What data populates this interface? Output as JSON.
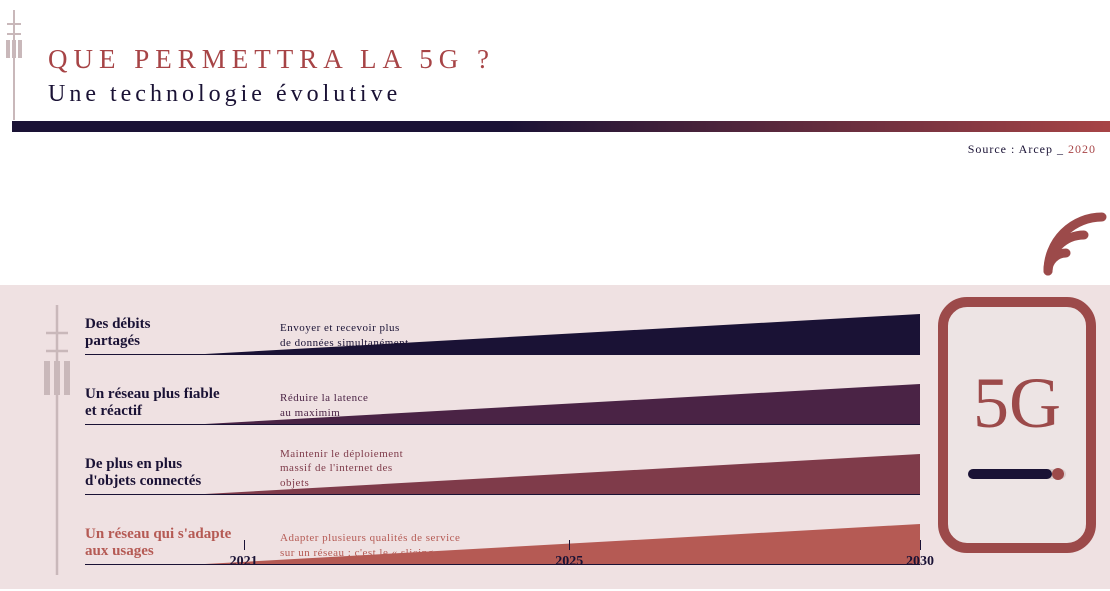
{
  "header": {
    "title": "QUE PERMETTRA LA 5G ?",
    "subtitle": "Une technologie évolutive",
    "title_color": "#a74446",
    "subtitle_color": "#1a1235",
    "gradient_start": "#1a1235",
    "gradient_end": "#a74446"
  },
  "source": {
    "prefix": "Source : Arcep _ ",
    "year": "2020"
  },
  "panel": {
    "background": "#efe1e2"
  },
  "phone": {
    "label": "5G",
    "stroke": "#9c4a4a",
    "label_color": "#9c4a4a",
    "screen_fill": "#ede4e4"
  },
  "rows": [
    {
      "label": "Des débits\npartagés",
      "desc": "Envoyer et recevoir plus\nde données simultanément",
      "wedge_color": "#1a1235",
      "label_color": "#1a1235",
      "desc_color": "#1a1235"
    },
    {
      "label": "Un réseau plus fiable\net réactif",
      "desc": "Réduire la latence\nau maximim",
      "wedge_color": "#4a2345",
      "label_color": "#1a1235",
      "desc_color": "#4a2345"
    },
    {
      "label": "De plus en plus\nd'objets connectés",
      "desc": "Maintenir le déploiement\nmassif de l'internet des\nobjets",
      "wedge_color": "#7f3b4a",
      "label_color": "#1a1235",
      "desc_color": "#7f3b4a"
    },
    {
      "label": "Un réseau qui s'adapte\naux usages",
      "desc": "Adapter plusieurs qualités de service\nsur un réseau : c'est le « slicing »",
      "wedge_color": "#b55a54",
      "label_color": "#b55a54",
      "desc_color": "#b55a54"
    }
  ],
  "timeline": {
    "ticks": [
      {
        "label": "2021",
        "pos_pct": 19
      },
      {
        "label": "2025",
        "pos_pct": 58
      },
      {
        "label": "2030",
        "pos_pct": 100
      }
    ]
  },
  "tower_color": "#c9b8ba",
  "signal_color": "#9c4a4a"
}
